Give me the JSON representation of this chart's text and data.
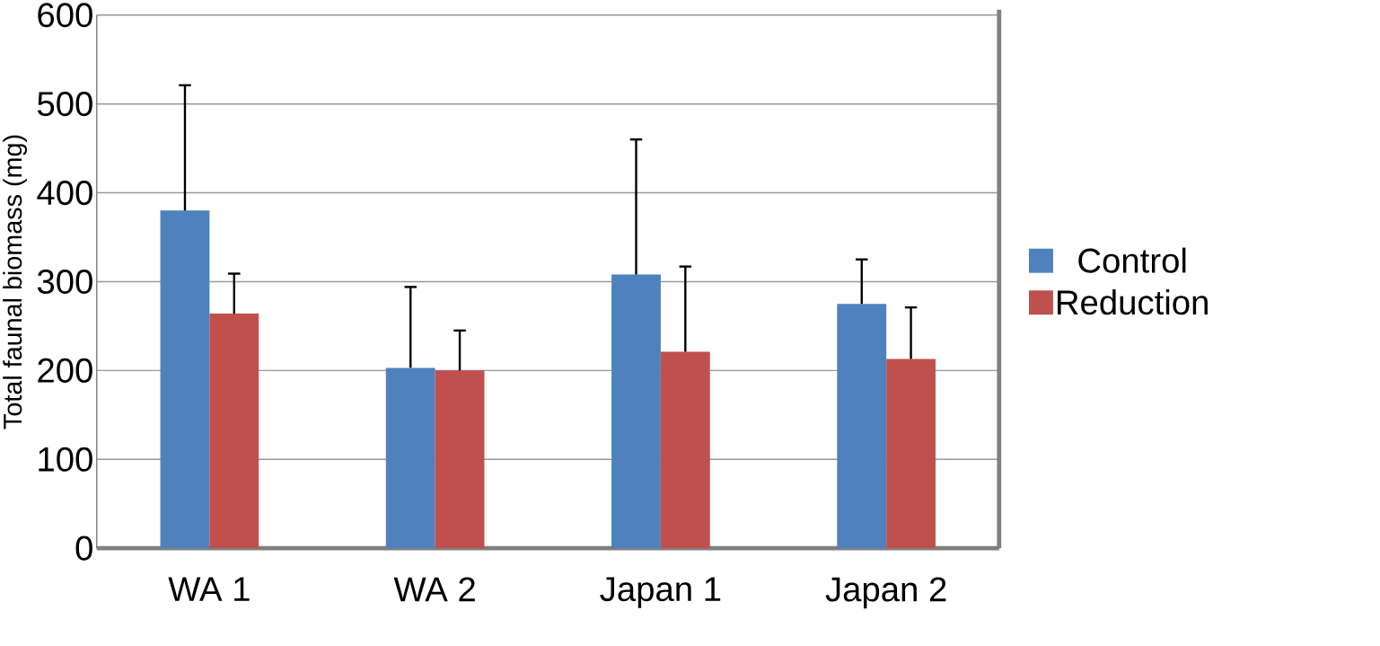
{
  "chart_data": {
    "type": "bar",
    "ylabel": "Total faunal biomass (mg)",
    "categories": [
      "WA 1",
      "WA 2",
      "Japan 1",
      "Japan 2"
    ],
    "series": [
      {
        "name": "Control",
        "color": "#4f81bd",
        "values": [
          380,
          203,
          308,
          275
        ],
        "errors": [
          [
            380,
            521
          ],
          [
            203,
            294
          ],
          [
            308,
            460
          ],
          [
            275,
            325
          ]
        ]
      },
      {
        "name": "Reduction",
        "color": "#c0504d",
        "values": [
          264,
          200,
          221,
          213
        ],
        "errors": [
          [
            264,
            309
          ],
          [
            200,
            245
          ],
          [
            221,
            317
          ],
          [
            213,
            271
          ]
        ]
      }
    ],
    "ylim": [
      0,
      600
    ],
    "yticks": [
      0,
      100,
      200,
      300,
      400,
      500,
      600
    ],
    "grid": "y",
    "legend": "right"
  }
}
